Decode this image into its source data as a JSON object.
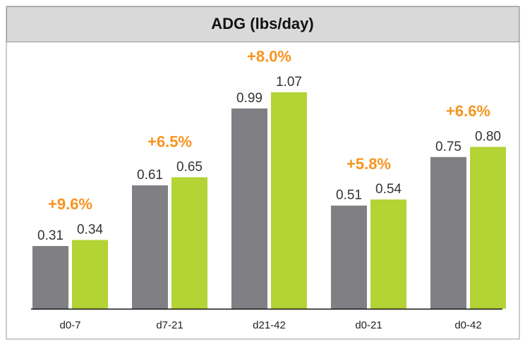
{
  "chart_data": {
    "type": "bar",
    "title": "ADG (lbs/day)",
    "categories": [
      "d0-7",
      "d7-21",
      "d21-42",
      "d0-21",
      "d0-42"
    ],
    "series": [
      {
        "color": "#808084",
        "values": [
          0.31,
          0.61,
          0.99,
          0.51,
          0.75
        ],
        "value_labels": [
          "0.31",
          "0.61",
          "0.99",
          "0.51",
          "0.75"
        ]
      },
      {
        "color": "#b4d335",
        "values": [
          0.34,
          0.65,
          1.07,
          0.54,
          0.8
        ],
        "value_labels": [
          "0.34",
          "0.65",
          "1.07",
          "0.54",
          "0.80"
        ]
      }
    ],
    "annotations": [
      "+9.6%",
      "+6.5%",
      "+8.0%",
      "+5.8%",
      "+6.6%"
    ],
    "annotation_color": "#f7941d"
  }
}
